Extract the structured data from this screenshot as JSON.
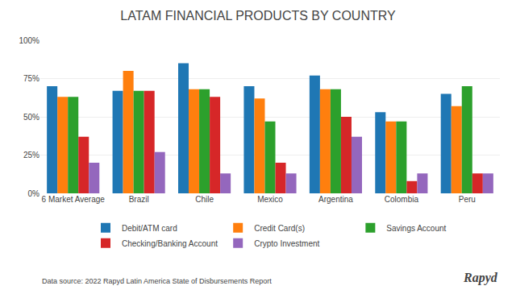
{
  "chart_data": {
    "type": "bar",
    "title": "LATAM FINANCIAL PRODUCTS BY COUNTRY",
    "categories": [
      "6 Market Average",
      "Brazil",
      "Chile",
      "Mexico",
      "Argentina",
      "Colombia",
      "Peru"
    ],
    "series": [
      {
        "name": "Debit/ATM card",
        "values": [
          70,
          67,
          85,
          70,
          77,
          53,
          65
        ]
      },
      {
        "name": "Credit Card(s)",
        "values": [
          63,
          80,
          68,
          62,
          68,
          47,
          57
        ]
      },
      {
        "name": "Savings Account",
        "values": [
          63,
          67,
          68,
          47,
          68,
          47,
          70
        ]
      },
      {
        "name": "Checking/Banking Account",
        "values": [
          37,
          67,
          63,
          20,
          50,
          8,
          13
        ]
      },
      {
        "name": "Crypto Investment",
        "values": [
          20,
          27,
          13,
          13,
          37,
          13,
          13
        ]
      }
    ],
    "ylim": [
      0,
      100
    ],
    "yticks": [
      {
        "value": 0,
        "label": "0%"
      },
      {
        "value": 25,
        "label": "25%"
      },
      {
        "value": 50,
        "label": "50%"
      },
      {
        "value": 75,
        "label": "75%"
      },
      {
        "value": 100,
        "label": "100%"
      }
    ],
    "grid": true,
    "legend": "bottom",
    "annotations": [
      "Data source: 2022 Rapyd Latin America State of Disbursements Report",
      "Rapyd"
    ]
  }
}
